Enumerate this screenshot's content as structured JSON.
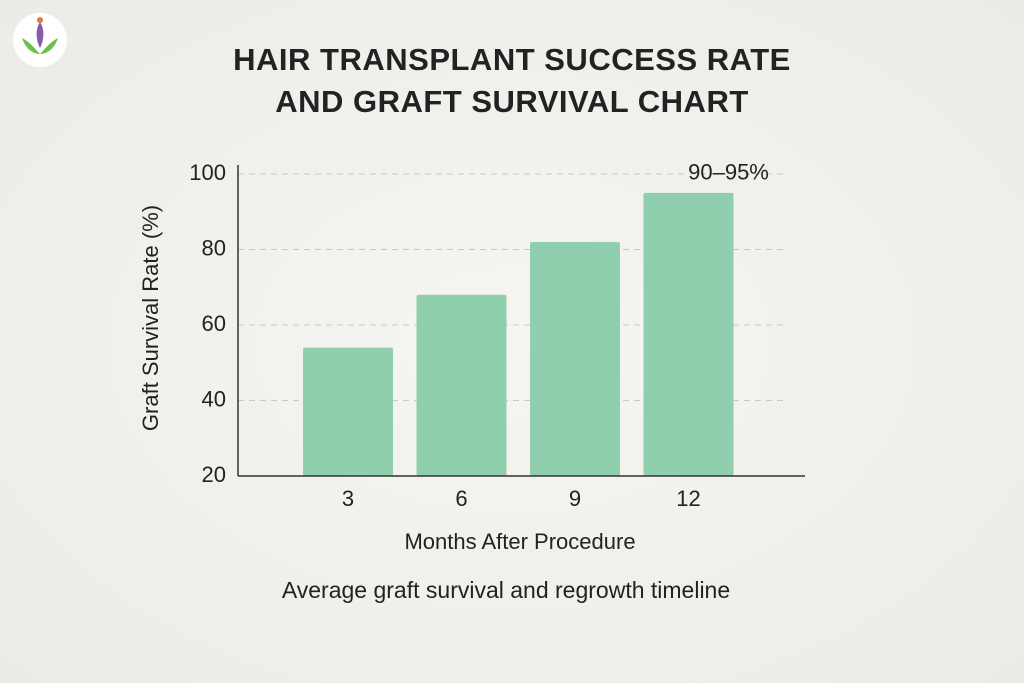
{
  "chart_data": {
    "type": "bar",
    "title_lines": [
      "HAIR TRANSPLANT SUCCESS RATE",
      "AND GRAFT SURVIVAL CHART"
    ],
    "x_label": "Months After Procedure",
    "y_label": "Graft Survival Rate (%)",
    "caption": "Average graft survival and regrowth timeline",
    "annotation": "90–95%",
    "categories": [
      "3",
      "6",
      "9",
      "12"
    ],
    "values": [
      54,
      68,
      82,
      95
    ],
    "color": "#8fcfae",
    "ylim": [
      20,
      100
    ],
    "yticks": [
      20,
      40,
      60,
      80,
      100
    ],
    "grid": true
  }
}
